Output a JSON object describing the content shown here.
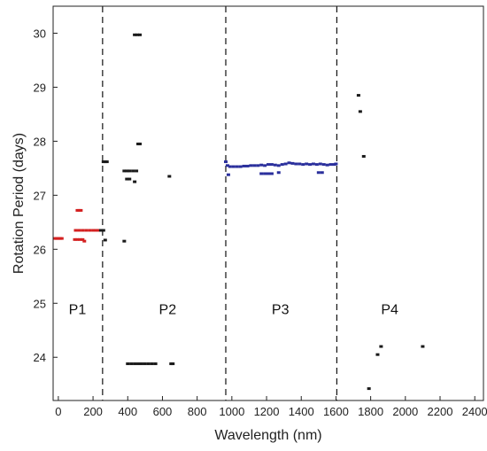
{
  "chart_data": {
    "type": "scatter",
    "xlabel": "Wavelength (nm)",
    "ylabel": "Rotation Period (days)",
    "xlim": [
      -30,
      2450
    ],
    "ylim": [
      23.2,
      30.5
    ],
    "x_ticks": [
      0,
      200,
      400,
      600,
      800,
      1000,
      1200,
      1400,
      1600,
      1800,
      2000,
      2200,
      2400
    ],
    "y_ticks": [
      24,
      25,
      26,
      27,
      28,
      29,
      30
    ],
    "grid": false,
    "boundaries": [
      255,
      965,
      1605
    ],
    "regions": [
      {
        "label": "P1",
        "x": 110,
        "y": 24.8
      },
      {
        "label": "P2",
        "x": 630,
        "y": 24.8
      },
      {
        "label": "P3",
        "x": 1280,
        "y": 24.8
      },
      {
        "label": "P4",
        "x": 1910,
        "y": 24.8
      }
    ],
    "series": [
      {
        "color": "#d42020",
        "points": [
          [
            -20,
            26.2
          ],
          [
            -10,
            26.2
          ],
          [
            0,
            26.2
          ],
          [
            10,
            26.2
          ],
          [
            20,
            26.2
          ],
          [
            100,
            26.35
          ],
          [
            120,
            26.35
          ],
          [
            140,
            26.35
          ],
          [
            160,
            26.35
          ],
          [
            180,
            26.35
          ],
          [
            200,
            26.35
          ],
          [
            215,
            26.35
          ],
          [
            230,
            26.35
          ],
          [
            110,
            26.72
          ],
          [
            120,
            26.72
          ],
          [
            130,
            26.72
          ],
          [
            95,
            26.18
          ],
          [
            110,
            26.18
          ],
          [
            125,
            26.18
          ],
          [
            140,
            26.18
          ],
          [
            150,
            26.15
          ]
        ]
      },
      {
        "color": "#1a1a1a",
        "points": [
          [
            245,
            26.35
          ],
          [
            260,
            26.35
          ],
          [
            270,
            26.17
          ],
          [
            260,
            27.62
          ],
          [
            270,
            27.62
          ],
          [
            280,
            27.62
          ],
          [
            380,
            27.45
          ],
          [
            395,
            27.45
          ],
          [
            410,
            27.45
          ],
          [
            430,
            27.45
          ],
          [
            450,
            27.45
          ],
          [
            395,
            27.3
          ],
          [
            410,
            27.3
          ],
          [
            440,
            27.25
          ],
          [
            460,
            27.95
          ],
          [
            470,
            27.95
          ],
          [
            440,
            29.97
          ],
          [
            455,
            29.97
          ],
          [
            470,
            29.97
          ],
          [
            380,
            26.15
          ],
          [
            400,
            23.88
          ],
          [
            420,
            23.88
          ],
          [
            440,
            23.88
          ],
          [
            460,
            23.88
          ],
          [
            480,
            23.88
          ],
          [
            500,
            23.88
          ],
          [
            520,
            23.88
          ],
          [
            540,
            23.88
          ],
          [
            650,
            23.88
          ],
          [
            660,
            23.88
          ],
          [
            560,
            23.88
          ],
          [
            640,
            27.35
          ],
          [
            1730,
            28.85
          ],
          [
            1740,
            28.55
          ],
          [
            1760,
            27.72
          ],
          [
            1790,
            23.42
          ],
          [
            1840,
            24.05
          ],
          [
            1860,
            24.2
          ],
          [
            2100,
            24.2
          ]
        ]
      },
      {
        "color": "#2a2f9c",
        "points": [
          [
            965,
            27.62
          ],
          [
            975,
            27.55
          ],
          [
            990,
            27.53
          ],
          [
            1010,
            27.53
          ],
          [
            1030,
            27.53
          ],
          [
            1050,
            27.53
          ],
          [
            1070,
            27.54
          ],
          [
            1090,
            27.54
          ],
          [
            1110,
            27.55
          ],
          [
            1130,
            27.55
          ],
          [
            1150,
            27.55
          ],
          [
            1170,
            27.56
          ],
          [
            1190,
            27.55
          ],
          [
            1210,
            27.57
          ],
          [
            1230,
            27.57
          ],
          [
            1250,
            27.56
          ],
          [
            1270,
            27.55
          ],
          [
            1290,
            27.57
          ],
          [
            1310,
            27.58
          ],
          [
            1330,
            27.6
          ],
          [
            1350,
            27.59
          ],
          [
            1370,
            27.58
          ],
          [
            1390,
            27.58
          ],
          [
            1410,
            27.57
          ],
          [
            1430,
            27.58
          ],
          [
            1450,
            27.57
          ],
          [
            1470,
            27.58
          ],
          [
            1490,
            27.57
          ],
          [
            1510,
            27.58
          ],
          [
            1530,
            27.57
          ],
          [
            1550,
            27.56
          ],
          [
            1570,
            27.57
          ],
          [
            1590,
            27.57
          ],
          [
            1600,
            27.58
          ],
          [
            980,
            27.38
          ],
          [
            1170,
            27.4
          ],
          [
            1190,
            27.4
          ],
          [
            1210,
            27.4
          ],
          [
            1230,
            27.4
          ],
          [
            1270,
            27.42
          ],
          [
            1500,
            27.42
          ],
          [
            1520,
            27.42
          ]
        ]
      }
    ]
  }
}
